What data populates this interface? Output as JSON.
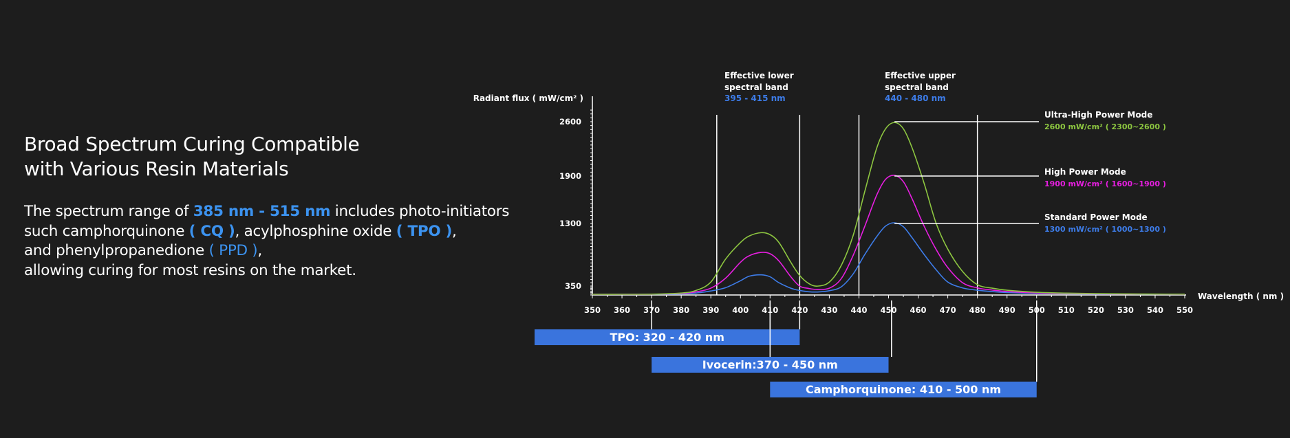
{
  "headline": {
    "line1": "Broad Spectrum Curing Compatible",
    "line2": "with Various Resin Materials"
  },
  "description": {
    "p1a": "The spectrum range of ",
    "p1b": "385 nm - 515 nm",
    "p1c": " includes photo-initiators",
    "p2a": "such camphorquinone ",
    "p2b": "( CQ )",
    "p2c": ", acylphosphine oxide ",
    "p2d": "( TPO )",
    "p2e": ",",
    "p3a": "and phenylpropanedione ",
    "p3b": "( PPD )",
    "p3c": ",",
    "p4": "allowing curing for most resins on the market."
  },
  "chart_data": {
    "type": "line",
    "ylabel": "Radiant flux ( mW/cm² )",
    "xlabel": "Wavelength ( nm )",
    "xlim": [
      350,
      550
    ],
    "y_ticks": [
      350,
      1300,
      1900,
      2600
    ],
    "x_ticks": [
      350,
      360,
      370,
      380,
      390,
      400,
      410,
      420,
      430,
      440,
      450,
      460,
      470,
      480,
      490,
      500,
      510,
      520,
      530,
      540,
      550
    ],
    "x": [
      350,
      360,
      370,
      380,
      385,
      390,
      395,
      400,
      403,
      407,
      410,
      413,
      417,
      420,
      423,
      426,
      430,
      434,
      438,
      442,
      446,
      449,
      452,
      455,
      458,
      462,
      466,
      470,
      475,
      480,
      485,
      490,
      500,
      510,
      520,
      530,
      540,
      550
    ],
    "series": [
      {
        "name": "Ultra-High Power Mode",
        "color": "#8dc640",
        "values": [
          0,
          0,
          5,
          50,
          150,
          400,
          750,
          1000,
          1100,
          1150,
          1120,
          1000,
          700,
          500,
          380,
          320,
          400,
          650,
          1100,
          1700,
          2250,
          2500,
          2580,
          2500,
          2250,
          1800,
          1300,
          900,
          560,
          360,
          240,
          160,
          80,
          45,
          25,
          15,
          8,
          5
        ]
      },
      {
        "name": "High Power Mode",
        "color": "#e61ee0",
        "values": [
          0,
          0,
          3,
          30,
          95,
          240,
          460,
          700,
          800,
          850,
          830,
          720,
          480,
          320,
          230,
          190,
          240,
          450,
          800,
          1250,
          1650,
          1850,
          1900,
          1820,
          1600,
          1250,
          900,
          620,
          390,
          250,
          165,
          110,
          55,
          30,
          18,
          10,
          6,
          3
        ]
      },
      {
        "name": "Standard Power Mode",
        "color": "#3d7ce8",
        "values": [
          0,
          0,
          2,
          15,
          50,
          130,
          260,
          420,
          490,
          510,
          480,
          390,
          240,
          150,
          100,
          90,
          140,
          290,
          520,
          820,
          1090,
          1250,
          1300,
          1240,
          1070,
          820,
          590,
          400,
          250,
          160,
          105,
          70,
          35,
          20,
          12,
          7,
          4,
          2
        ]
      }
    ],
    "bands": [
      {
        "title1": "Effective lower",
        "title2": "spectral band",
        "range": "395 - 415 nm"
      },
      {
        "title1": "Effective upper",
        "title2": "spectral band",
        "range": "440 - 480 nm"
      }
    ],
    "band_lines_x": [
      392,
      420,
      440,
      480
    ],
    "modes": [
      {
        "title": "Ultra-High Power Mode",
        "detail": "2600 mW/cm² ( 2300~2600 )",
        "color": "#8dc640",
        "peak": 2600
      },
      {
        "title": "High Power Mode",
        "detail": "1900 mW/cm² ( 1600~1900 )",
        "color": "#e61ee0",
        "peak": 1900
      },
      {
        "title": "Standard Power Mode",
        "detail": "1300 mW/cm² ( 1000~1300 )",
        "color": "#3d7ce8",
        "peak": 1300
      }
    ],
    "initiators": [
      {
        "label": "TPO: 320 - 420 nm",
        "start": 320,
        "end": 420,
        "connectors": [
          370,
          410,
          420
        ]
      },
      {
        "label": "Ivocerin:370 - 450 nm",
        "start": 370,
        "end": 450,
        "connectors": [
          410,
          451
        ]
      },
      {
        "label": "Camphorquinone: 410 - 500 nm",
        "start": 410,
        "end": 500,
        "connectors": [
          500
        ]
      }
    ],
    "bar_color": "#3a74dd"
  }
}
